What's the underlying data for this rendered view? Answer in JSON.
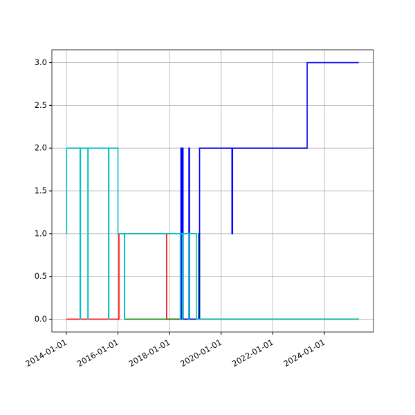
{
  "chart_data": {
    "type": "line",
    "drawstyle": "steps-post",
    "grid": true,
    "xlim": [
      "2013-06-10",
      "2025-11-25"
    ],
    "xticks": [
      "2014-01-01",
      "2016-01-01",
      "2018-01-01",
      "2020-01-01",
      "2022-01-01",
      "2024-01-01"
    ],
    "ylim": [
      -0.15,
      3.15
    ],
    "yticks": [
      {
        "value": 0,
        "label": "0.0"
      },
      {
        "value": 0.5,
        "label": "0.5"
      },
      {
        "value": 1,
        "label": "1.0"
      },
      {
        "value": 1.5,
        "label": "1.5"
      },
      {
        "value": 2,
        "label": "2.0"
      },
      {
        "value": 2.5,
        "label": "2.5"
      },
      {
        "value": 3,
        "label": "3.0"
      }
    ],
    "series": [
      {
        "color": "#ff0000",
        "x": [
          "2014-01-01",
          "2016-01-15",
          "2017-11-20",
          "2025-05-01"
        ],
        "values": [
          0,
          1,
          0,
          0
        ]
      },
      {
        "color": "#008000",
        "x": [
          "2016-04-01",
          "2019-02-15",
          "2019-03-01",
          "2025-05-01"
        ],
        "values": [
          0,
          1,
          0,
          0
        ]
      },
      {
        "color": "#0000ff",
        "x": [
          "2018-06-01",
          "2018-06-10",
          "2018-06-20",
          "2018-07-01",
          "2018-07-10",
          "2018-10-01",
          "2018-10-10",
          "2019-03-01",
          "2020-06-01",
          "2020-06-10",
          "2023-05-01",
          "2025-05-01"
        ],
        "values": [
          0,
          2,
          0,
          2,
          0,
          2,
          0,
          2,
          1,
          2,
          3,
          3
        ]
      },
      {
        "color": "#00bfbf",
        "x": [
          "2014-01-01",
          "2014-01-05",
          "2014-07-15",
          "2014-07-20",
          "2014-11-01",
          "2014-11-05",
          "2015-08-20",
          "2015-08-25",
          "2016-01-01",
          "2016-04-01",
          "2016-04-05",
          "2018-06-01",
          "2018-06-05",
          "2018-07-01",
          "2018-07-05",
          "2018-10-01",
          "2018-10-05",
          "2019-01-15",
          "2025-05-01"
        ],
        "values": [
          1,
          2,
          0,
          2,
          0,
          2,
          0,
          2,
          1,
          0,
          1,
          0,
          1,
          0,
          1,
          0,
          1,
          0,
          0
        ]
      }
    ]
  }
}
